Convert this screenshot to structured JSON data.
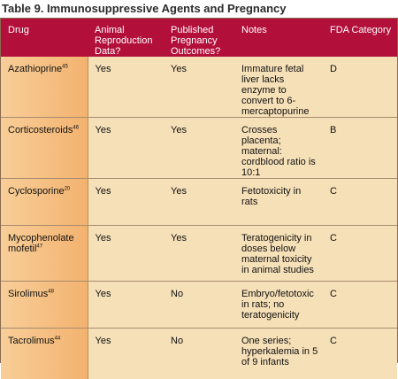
{
  "title": "Table 9. Immunosuppressive Agents and Pregnancy",
  "columns": [
    "Drug",
    "Animal Reproduction Data?",
    "Published Pregnancy Outcomes?",
    "Notes",
    "FDA Category"
  ],
  "rows": [
    {
      "drug": "Azathioprine",
      "ref": "45",
      "animal": "Yes",
      "published": "Yes",
      "notes": "Immature fetal liver lacks enzyme to convert to 6-mercaptopurine",
      "category": "D"
    },
    {
      "drug": "Corticosteroids",
      "ref": "46",
      "animal": "Yes",
      "published": "Yes",
      "notes": "Crosses placenta; maternal: cordblood ratio is 10:1",
      "category": "B"
    },
    {
      "drug": "Cyclosporine",
      "ref": "20",
      "animal": "Yes",
      "published": "Yes",
      "notes": "Fetotoxicity in rats",
      "category": "C"
    },
    {
      "drug": "Mycophenolate mofetil",
      "ref": "47",
      "animal": "Yes",
      "published": "Yes",
      "notes": "Teratogenicity in doses below maternal toxicity in animal studies",
      "category": "C"
    },
    {
      "drug": "Sirolimus",
      "ref": "48",
      "animal": "Yes",
      "published": "No",
      "notes": "Embryo/fetotoxic in rats; no teratogenicity",
      "category": "C"
    },
    {
      "drug": "Tacrolimus",
      "ref": "44",
      "animal": "Yes",
      "published": "No",
      "notes": "One series; hyperkalemia in 5 of 9 infants",
      "category": "C"
    }
  ],
  "colors": {
    "header_bg": "#b30f3b",
    "drug_col_bg": "#f3b26f",
    "cell_bg": "#f6e0b8"
  }
}
